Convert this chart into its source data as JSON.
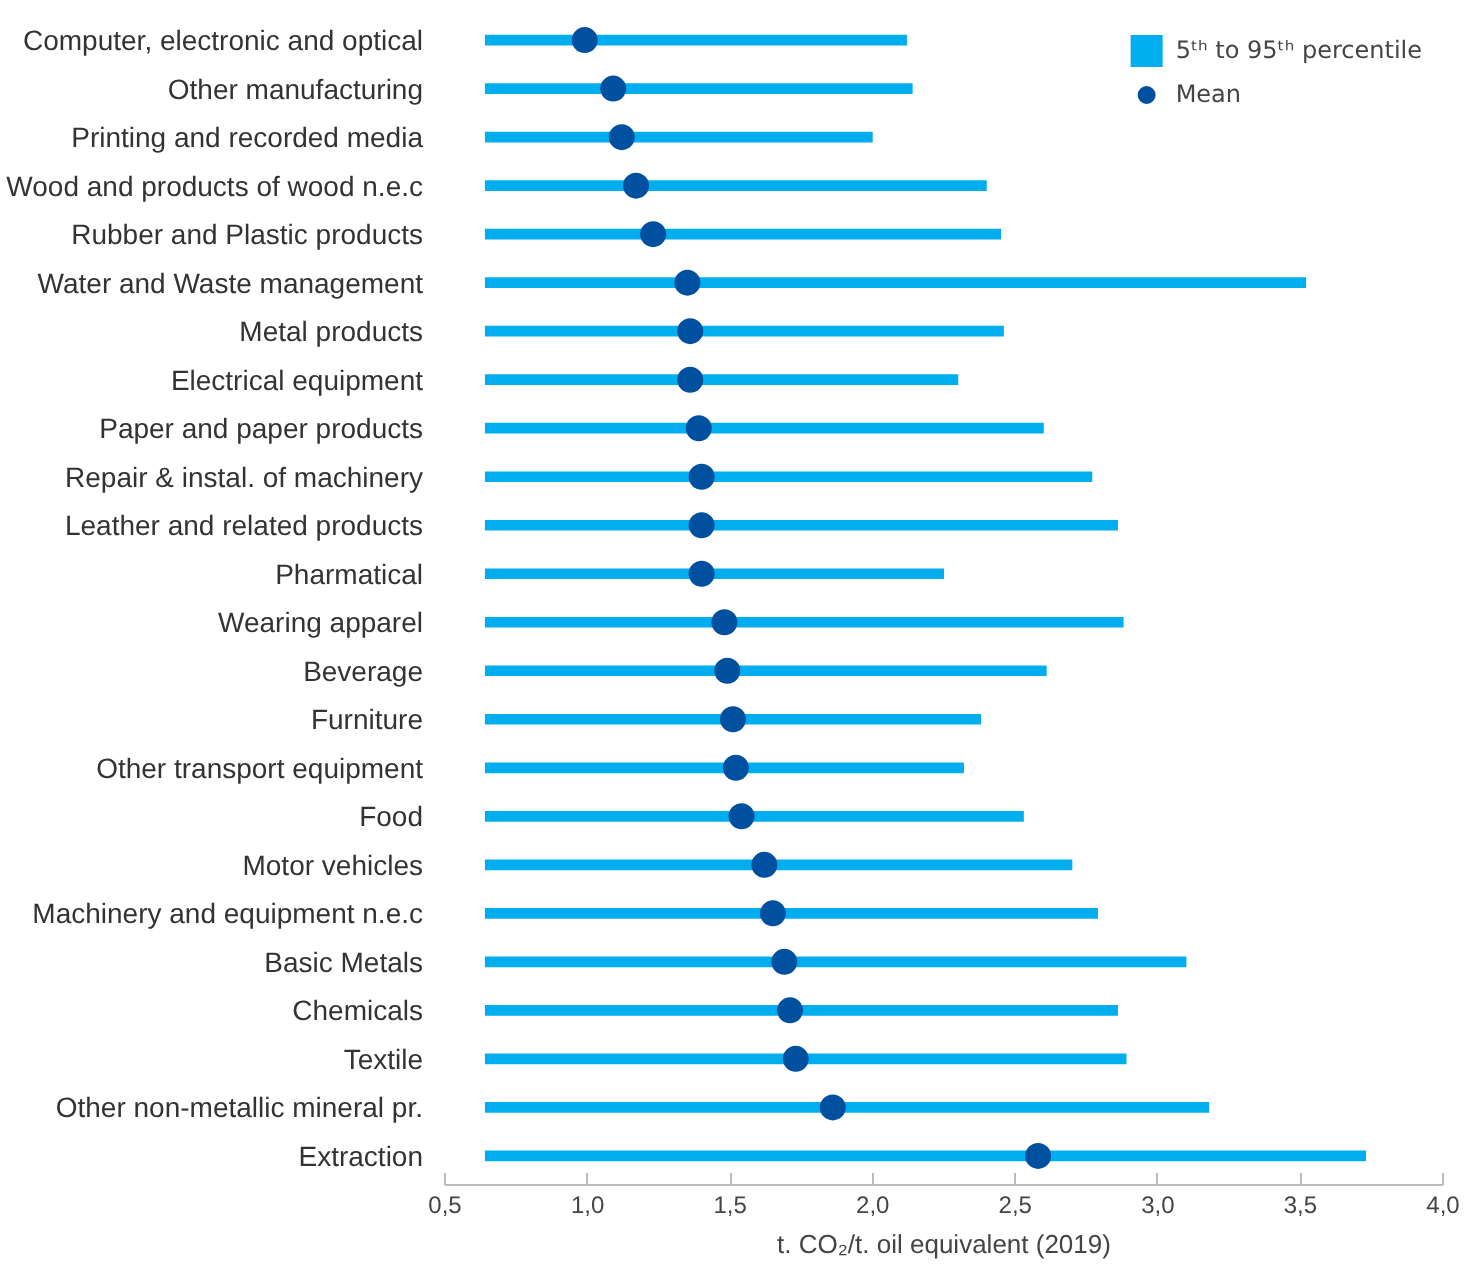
{
  "chart_data": {
    "type": "bar",
    "orientation": "horizontal",
    "categories": [
      "Computer, electronic and optical",
      "Other manufacturing",
      "Printing and recorded media",
      "Wood and products of wood n.e.c",
      "Rubber and Plastic products",
      "Water and Waste management",
      "Metal products",
      "Electrical equipment",
      "Paper and paper products",
      "Repair & instal. of machinery",
      "Leather and related products",
      "Pharmatical",
      "Wearing apparel",
      "Beverage",
      "Furniture",
      "Other transport equipment",
      "Food",
      "Motor vehicles",
      "Machinery and equipment n.e.c",
      "Basic Metals",
      "Chemicals",
      "Textile",
      "Other non-metallic mineral pr.",
      "Extraction"
    ],
    "series": [
      {
        "name": "5ᵗʰ to 95ᵗʰ percentile",
        "color": "#00aeef",
        "base": [
          0.64,
          0.64,
          0.64,
          0.64,
          0.64,
          0.64,
          0.64,
          0.64,
          0.64,
          0.64,
          0.64,
          0.64,
          0.64,
          0.64,
          0.64,
          0.64,
          0.64,
          0.64,
          0.64,
          0.64,
          0.64,
          0.64,
          0.64,
          0.64
        ],
        "values": [
          1.48,
          1.5,
          1.36,
          1.76,
          1.81,
          2.88,
          1.82,
          1.66,
          1.96,
          2.13,
          2.22,
          1.61,
          2.24,
          1.97,
          1.74,
          1.68,
          1.89,
          2.06,
          2.15,
          2.46,
          2.22,
          2.25,
          2.54,
          3.09
        ]
      },
      {
        "name": "Mean",
        "type": "scatter",
        "color": "#0050a0",
        "marker": "circle",
        "values": [
          0.99,
          1.09,
          1.12,
          1.17,
          1.23,
          1.35,
          1.36,
          1.36,
          1.39,
          1.4,
          1.4,
          1.4,
          1.48,
          1.49,
          1.51,
          1.52,
          1.54,
          1.62,
          1.65,
          1.69,
          1.71,
          1.73,
          1.86,
          2.58
        ]
      }
    ],
    "xlabel": "t. CO₂/t. oil equivalent (2019)",
    "xlim": [
      0.5,
      4.0
    ],
    "xticks": [
      {
        "value": 0.5,
        "label": "0,5"
      },
      {
        "value": 1.0,
        "label": "1,0"
      },
      {
        "value": 1.5,
        "label": "1,5"
      },
      {
        "value": 2.0,
        "label": "2,0"
      },
      {
        "value": 2.5,
        "label": "2,5"
      },
      {
        "value": 3.0,
        "label": "3,0"
      },
      {
        "value": 3.5,
        "label": "3,5"
      },
      {
        "value": 4.0,
        "label": "4,0"
      }
    ],
    "grid": false,
    "legend": "top right"
  }
}
